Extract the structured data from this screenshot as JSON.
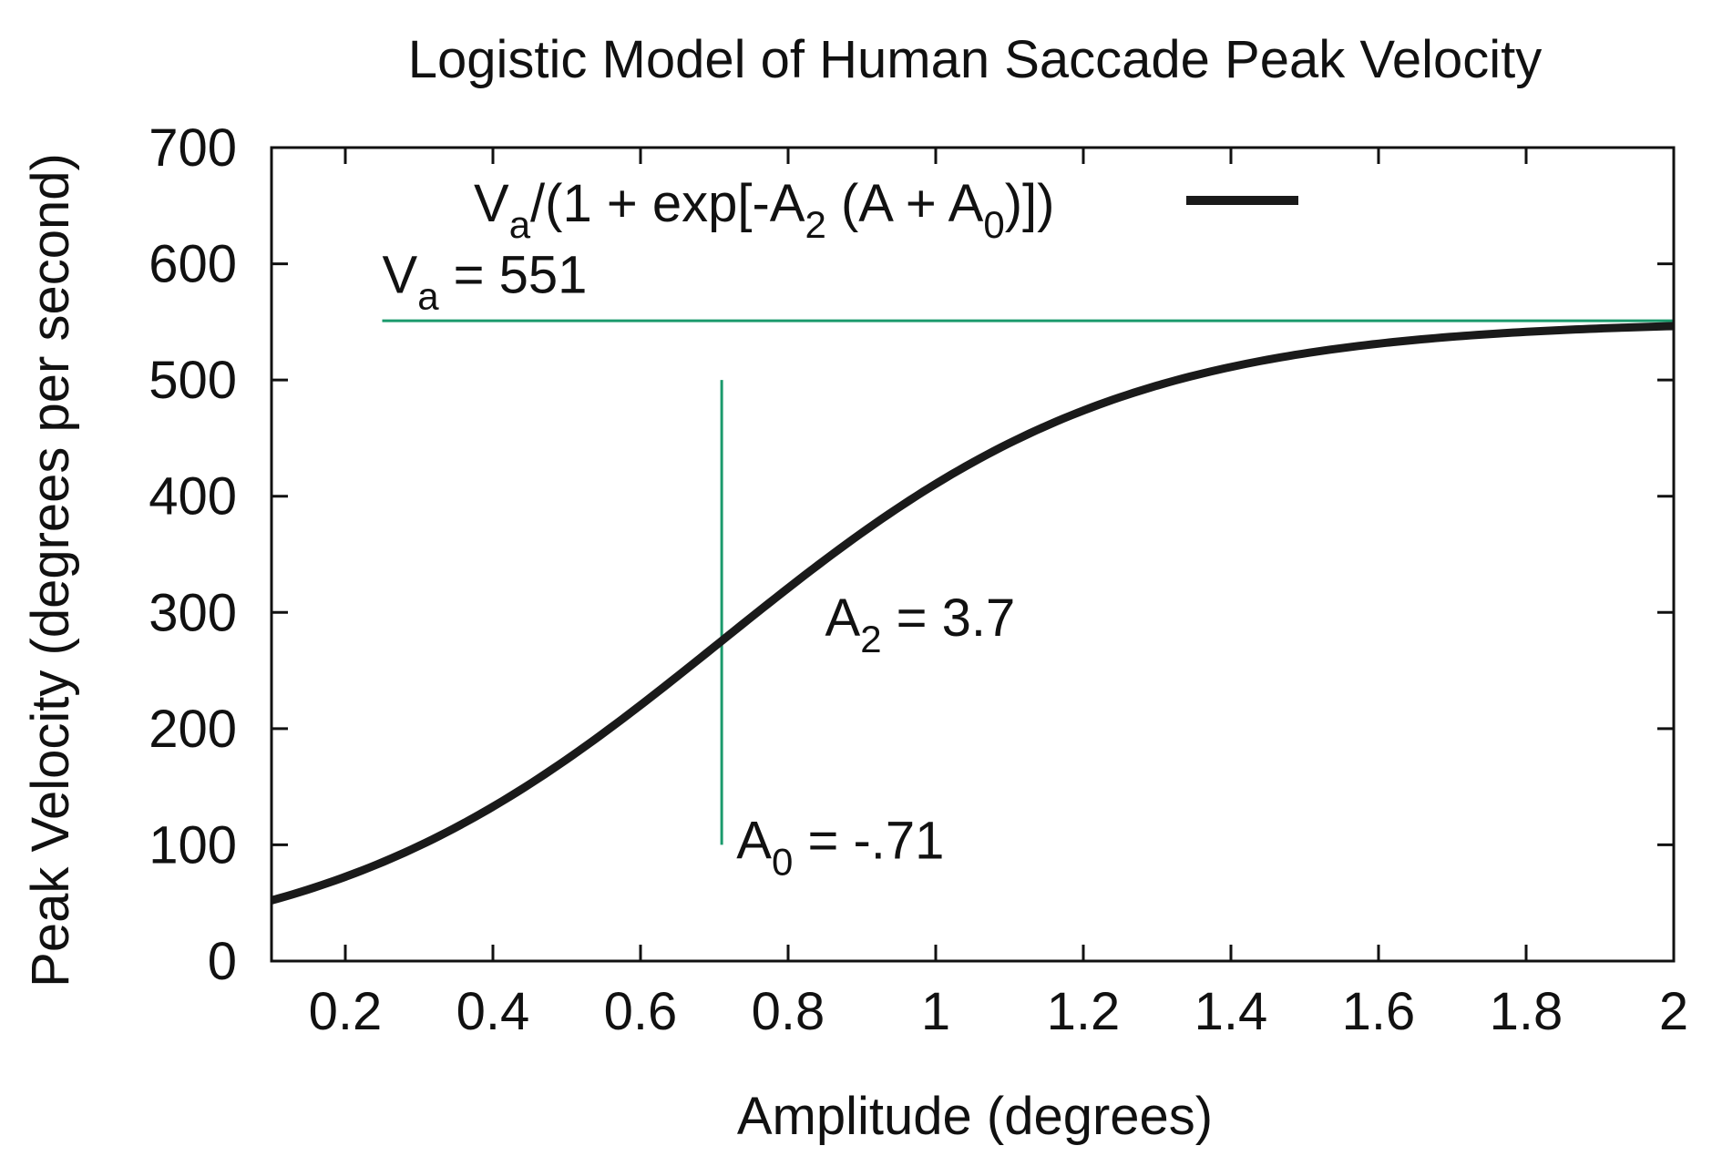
{
  "chart_data": {
    "type": "line",
    "title": "Logistic Model of Human Saccade Peak Velocity",
    "xlabel": "Amplitude (degrees)",
    "ylabel": "Peak Velocity (degrees per second)",
    "xlim": [
      0.1,
      2
    ],
    "ylim": [
      0,
      700
    ],
    "x_ticks": [
      0.2,
      0.4,
      0.6,
      0.8,
      1,
      1.2,
      1.4,
      1.6,
      1.8,
      2
    ],
    "x_tick_labels": [
      "0.2",
      "0.4",
      "0.6",
      "0.8",
      "1",
      "1.2",
      "1.4",
      "1.6",
      "1.8",
      "2"
    ],
    "y_ticks": [
      0,
      100,
      200,
      300,
      400,
      500,
      600,
      700
    ],
    "y_tick_labels": [
      "0",
      "100",
      "200",
      "300",
      "400",
      "500",
      "600",
      "700"
    ],
    "grid": false,
    "legend_position": "top",
    "series": [
      {
        "name": "Va/(1 + exp[-A2 (A + A0)])",
        "color": "#1a1a1a",
        "model": "logistic",
        "params": {
          "Va": 551,
          "A2": 3.7,
          "A0": -0.71
        },
        "x": [
          0.1,
          0.2,
          0.3,
          0.4,
          0.5,
          0.6,
          0.7,
          0.8,
          0.9,
          1.0,
          1.1,
          1.2,
          1.3,
          1.4,
          1.5,
          1.6,
          1.7,
          1.8,
          1.9,
          2.0
        ],
        "y": [
          52,
          73,
          101,
          136,
          177,
          222,
          270,
          318,
          363,
          404,
          439,
          469,
          492,
          509,
          522,
          531,
          537,
          542,
          545,
          547
        ]
      }
    ],
    "legend": {
      "base": "V",
      "sub1": "a",
      "mid": "/(1 + exp[-A",
      "sub2": "2",
      "mid2": " (A + A",
      "sub3": "0",
      "end": ")])"
    },
    "reference_lines": [
      {
        "name": "asymptote",
        "orientation": "horizontal",
        "y": 551,
        "x_from": 0.25,
        "x_to": 2,
        "color": "#1a9a6c"
      },
      {
        "name": "inflection",
        "orientation": "vertical",
        "x": 0.71,
        "y_from": 100,
        "y_to": 500,
        "color": "#1a9a6c"
      }
    ],
    "annotations": {
      "va": {
        "base": "V",
        "sub": "a",
        "rest": " = 551",
        "x": 0.25,
        "y": 575
      },
      "a2": {
        "base": "A",
        "sub": "2",
        "rest": " = 3.7",
        "x": 0.85,
        "y": 280
      },
      "a0": {
        "base": "A",
        "sub": "0",
        "rest": " = -.71",
        "x": 0.73,
        "y": 88
      }
    }
  }
}
